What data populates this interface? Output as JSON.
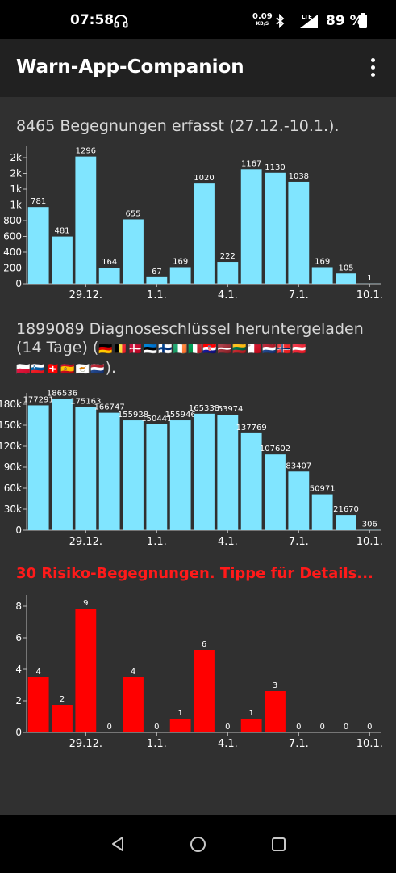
{
  "status_bar": {
    "time": "07:58",
    "speed_value": "0.09",
    "speed_unit": "KB/S",
    "network": "LTE",
    "battery": "89 %",
    "icons": [
      "headphones-icon",
      "bluetooth-icon",
      "lte-signal-icon",
      "battery-icon"
    ]
  },
  "app_bar": {
    "title": "Warn-App-Companion",
    "menu_icon": "more-vert-icon"
  },
  "sections": {
    "encounters_heading": "8465 Begegnungen erfasst (27.12.-10.1.).",
    "keys_heading_line1": "1899089 Diagnoseschlüssel heruntergeladen",
    "keys_heading_line2": "(14 Tage) (",
    "flags_line2": "🇩🇪🇧🇪🇩🇰🇪🇪🇫🇮🇮🇪🇮🇹🇭🇷🇱🇻🇱🇹🇲🇹🇳🇱🇳🇴🇦🇹",
    "flags_line3": "🇵🇱🇸🇮🇨🇭🇪🇸🇨🇾🇳🇱",
    "keys_heading_end": ").",
    "risk_heading": "30 Risiko-Begegnungen. Tippe für Details..."
  },
  "colors": {
    "bar_blue": "#80e5ff",
    "bar_red": "#ff0000",
    "background": "#303030",
    "text": "#ffffff"
  },
  "chart_data": [
    {
      "type": "bar",
      "title": "8465 Begegnungen erfasst (27.12.-10.1.).",
      "x_tick_labels": [
        "29.12.",
        "1.1.",
        "4.1.",
        "7.1.",
        "10.1."
      ],
      "y_tick_labels": [
        "0",
        "200",
        "400",
        "600",
        "800",
        "1k",
        "1k",
        "2k",
        "2k"
      ],
      "values": [
        781,
        481,
        1296,
        164,
        655,
        67,
        169,
        1020,
        222,
        1167,
        1130,
        1038,
        169,
        105,
        1
      ],
      "data_labels": [
        "781",
        "481",
        "1296",
        "164",
        "655",
        "67",
        "169",
        "1020",
        "222",
        "1167",
        "1130",
        "1038",
        "169",
        "105",
        "1"
      ],
      "ylim": [
        0,
        1400
      ],
      "grid": false
    },
    {
      "type": "bar",
      "title": "1899089 Diagnoseschlüssel heruntergeladen (14 Tage)",
      "x_tick_labels": [
        "29.12.",
        "1.1.",
        "4.1.",
        "7.1.",
        "10.1."
      ],
      "y_tick_labels": [
        "0",
        "30k",
        "60k",
        "90k",
        "120k",
        "150k",
        "180k"
      ],
      "values": [
        177291,
        186536,
        175163,
        166747,
        155928,
        150441,
        155946,
        165338,
        163974,
        137769,
        107602,
        83407,
        50971,
        21670,
        306
      ],
      "data_labels": [
        "177291",
        "186536",
        "175163",
        "166747",
        "155928",
        "150441",
        "155946",
        "165338",
        "163974",
        "137769",
        "107602",
        "83407",
        "50971",
        "21670",
        "306"
      ],
      "ylim": [
        0,
        195000
      ],
      "grid": false
    },
    {
      "type": "bar",
      "title": "30 Risiko-Begegnungen. Tippe für Details...",
      "x_tick_labels": [
        "29.12.",
        "1.1.",
        "4.1.",
        "7.1.",
        "10.1."
      ],
      "y_tick_labels": [
        "0",
        "2",
        "4",
        "6",
        "8"
      ],
      "values": [
        4,
        2,
        9,
        0,
        4,
        0,
        1,
        6,
        0,
        1,
        3,
        0,
        0,
        0,
        0
      ],
      "data_labels": [
        "4",
        "2",
        "9",
        "0",
        "4",
        "0",
        "1",
        "6",
        "0",
        "1",
        "3",
        "0",
        "0",
        "0",
        "0"
      ],
      "ylim": [
        0,
        10
      ],
      "grid": false
    }
  ]
}
